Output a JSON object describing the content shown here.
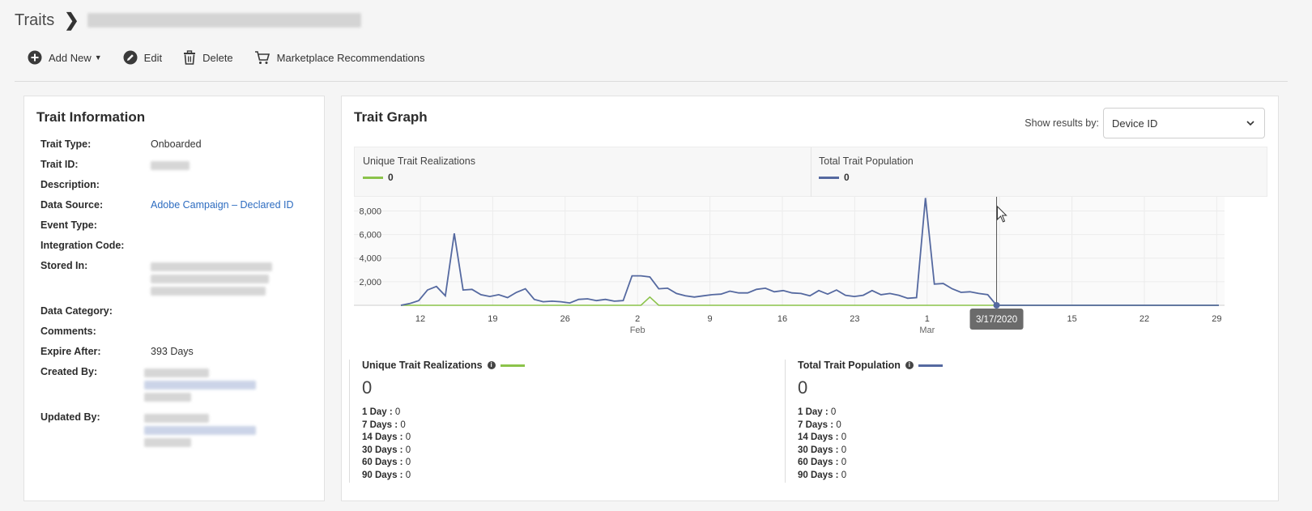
{
  "breadcrumb": {
    "root": "Traits"
  },
  "toolbar": {
    "add_new": "Add New",
    "edit": "Edit",
    "delete": "Delete",
    "marketplace": "Marketplace Recommendations"
  },
  "trait_info": {
    "title": "Trait Information",
    "rows": [
      {
        "label": "Trait Type:",
        "value": "Onboarded"
      },
      {
        "label": "Trait ID:",
        "value": ""
      },
      {
        "label": "Description:",
        "value": ""
      },
      {
        "label": "Data Source:",
        "value": "Adobe Campaign – Declared ID"
      },
      {
        "label": "Event Type:",
        "value": ""
      },
      {
        "label": "Integration Code:",
        "value": ""
      },
      {
        "label": "Stored In:",
        "value": ""
      },
      {
        "label": "Data Category:",
        "value": ""
      },
      {
        "label": "Comments:",
        "value": ""
      },
      {
        "label": "Expire After:",
        "value": "393 Days"
      },
      {
        "label": "Created By:",
        "value": ""
      },
      {
        "label": "Updated By:",
        "value": ""
      }
    ]
  },
  "graph": {
    "title": "Trait Graph",
    "show_results_label": "Show results by:",
    "show_results_value": "Device ID",
    "legend": {
      "unique_label": "Unique Trait Realizations",
      "unique_value": "0",
      "total_label": "Total Trait Population",
      "total_value": "0"
    },
    "tooltip": "3/17/2020",
    "colors": {
      "unique": "#8bc34a",
      "total": "#5569a0"
    }
  },
  "chart_data": {
    "type": "line",
    "x_tick_labels": [
      "12",
      "19",
      "26",
      "2",
      "9",
      "16",
      "23",
      "1",
      "8",
      "15",
      "22",
      "29"
    ],
    "x_month_labels": [
      "Feb",
      "Mar"
    ],
    "y_tick_labels": [
      "2,000",
      "4,000",
      "6,000",
      "8,000"
    ],
    "ylim": [
      0,
      9200
    ],
    "grid": true,
    "series": [
      {
        "name": "Total Trait Population",
        "values": [
          0,
          150,
          400,
          1300,
          1600,
          800,
          6100,
          1300,
          1350,
          900,
          750,
          900,
          650,
          1100,
          1400,
          500,
          300,
          350,
          300,
          200,
          500,
          550,
          400,
          500,
          350,
          400,
          2500,
          2500,
          2400,
          1400,
          1450,
          1000,
          800,
          700,
          800,
          900,
          950,
          1200,
          1050,
          1050,
          1350,
          1450,
          1150,
          1250,
          1050,
          1000,
          800,
          1250,
          950,
          1300,
          850,
          750,
          850,
          1250,
          900,
          1000,
          850,
          600,
          650,
          9100,
          1800,
          1850,
          1400,
          1100,
          1150,
          1000,
          900,
          0,
          0,
          0,
          0,
          0,
          0,
          0,
          0,
          0,
          0,
          0,
          0,
          0,
          0,
          0,
          0,
          0,
          0,
          0,
          0,
          0,
          0,
          0,
          0,
          0,
          0
        ]
      },
      {
        "name": "Unique Trait Realizations",
        "values": [
          0,
          0,
          0,
          0,
          0,
          0,
          0,
          0,
          0,
          0,
          0,
          0,
          0,
          0,
          0,
          0,
          0,
          0,
          0,
          0,
          0,
          0,
          0,
          0,
          0,
          0,
          0,
          0,
          700,
          0,
          0,
          0,
          0,
          0,
          0,
          0,
          0,
          0,
          0,
          0,
          0,
          0,
          0,
          0,
          0,
          0,
          0,
          0,
          0,
          0,
          0,
          0,
          0,
          0,
          0,
          0,
          0,
          0,
          0,
          0,
          0,
          0,
          0,
          0,
          0,
          0,
          0,
          0,
          0,
          0,
          0,
          0,
          0,
          0,
          0,
          0,
          0,
          0,
          0,
          0,
          0,
          0,
          0,
          0,
          0,
          0,
          0,
          0,
          0,
          0,
          0,
          0,
          0
        ]
      }
    ]
  },
  "stats": {
    "unique": {
      "title": "Unique Trait Realizations",
      "big": "0",
      "rows": [
        {
          "label": "1 Day :",
          "value": "0"
        },
        {
          "label": "7 Days :",
          "value": "0"
        },
        {
          "label": "14 Days :",
          "value": "0"
        },
        {
          "label": "30 Days :",
          "value": "0"
        },
        {
          "label": "60 Days :",
          "value": "0"
        },
        {
          "label": "90 Days :",
          "value": "0"
        }
      ]
    },
    "total": {
      "title": "Total Trait Population",
      "big": "0",
      "rows": [
        {
          "label": "1 Day :",
          "value": "0"
        },
        {
          "label": "7 Days :",
          "value": "0"
        },
        {
          "label": "14 Days :",
          "value": "0"
        },
        {
          "label": "30 Days :",
          "value": "0"
        },
        {
          "label": "60 Days :",
          "value": "0"
        },
        {
          "label": "90 Days :",
          "value": "0"
        }
      ]
    }
  }
}
